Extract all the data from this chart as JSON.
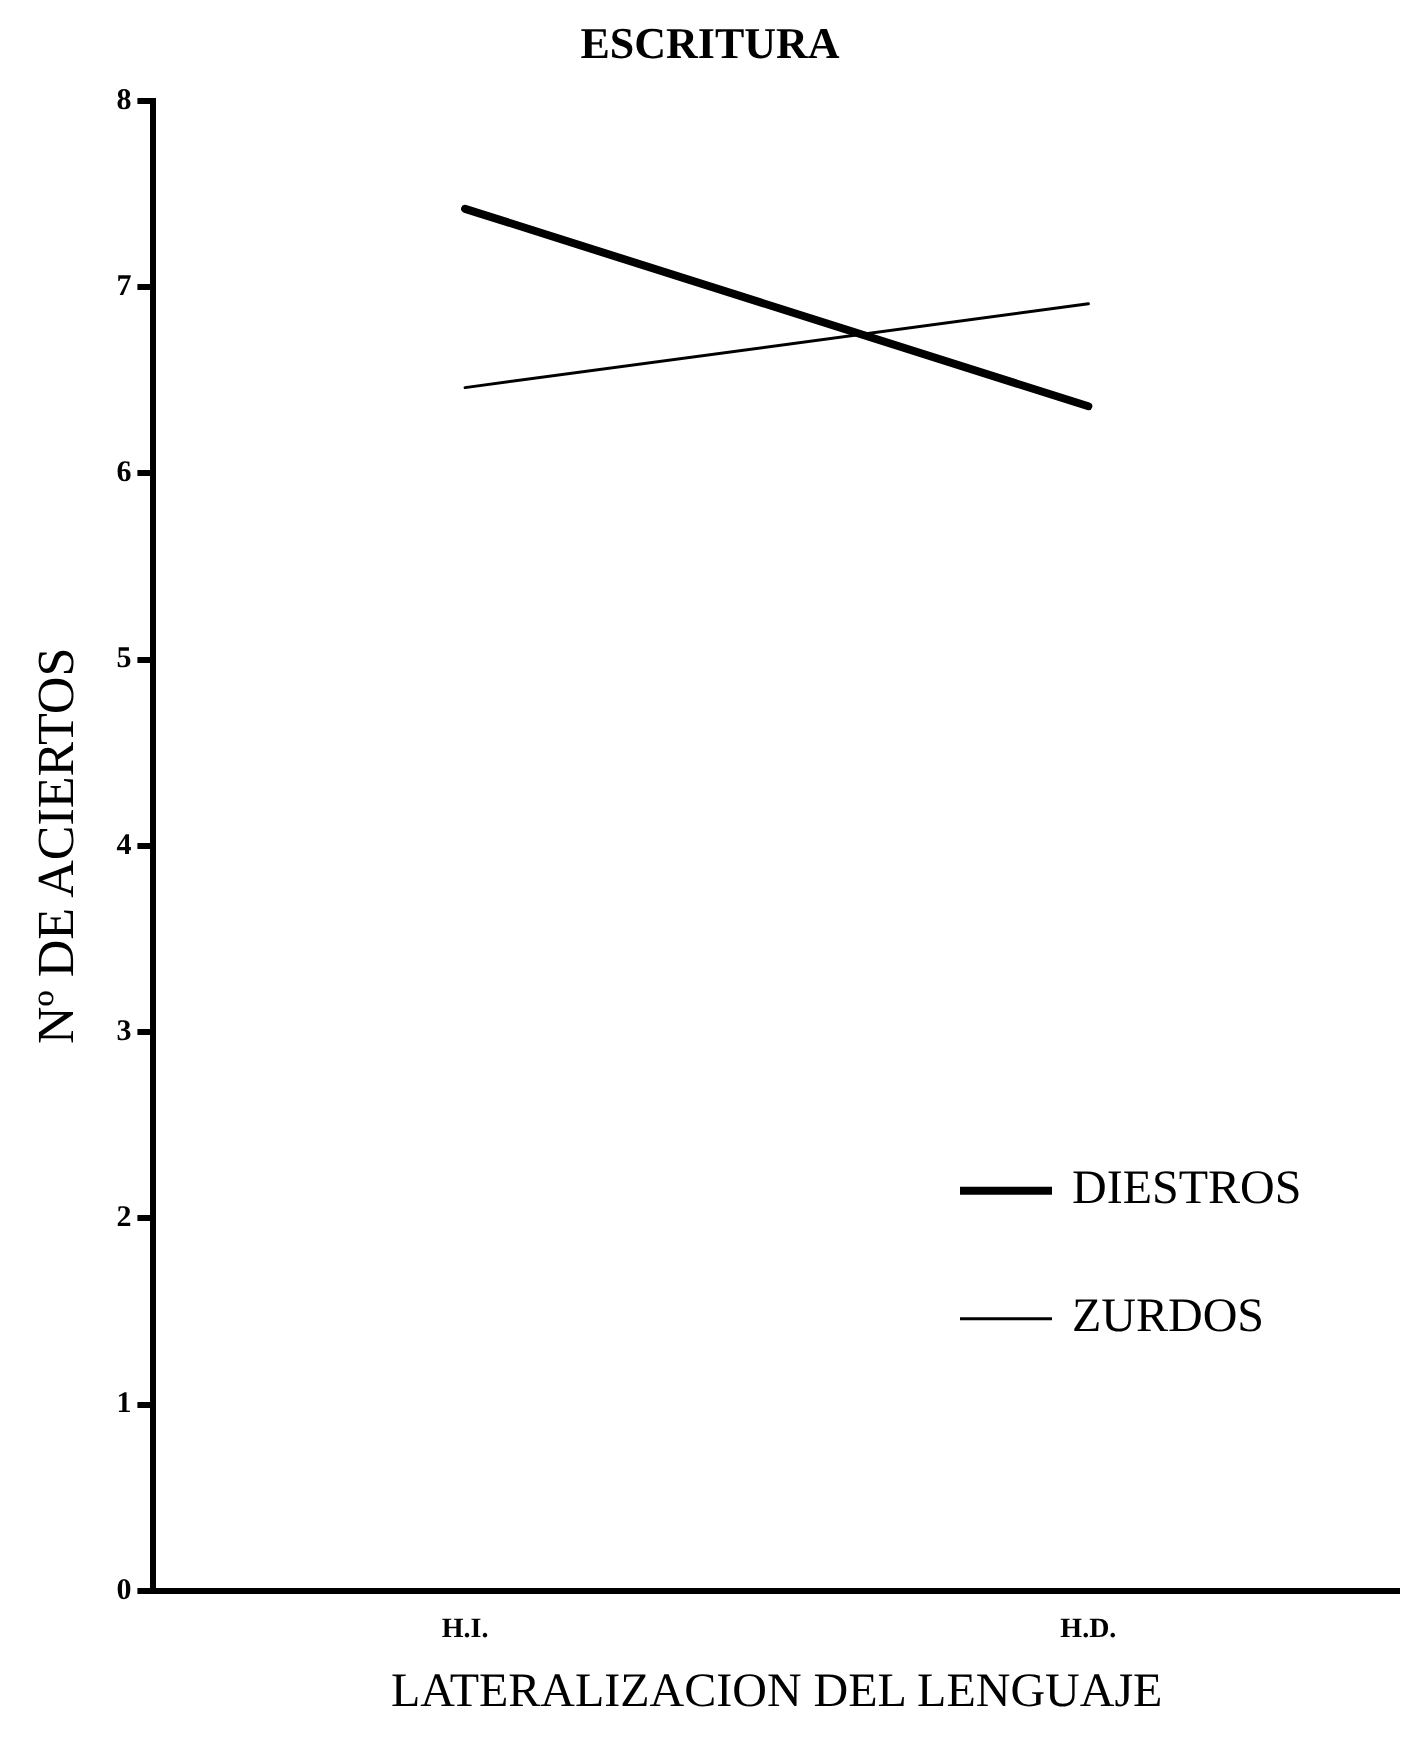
{
  "chart_data": {
    "type": "line",
    "title": "ESCRITURA",
    "xlabel": "LATERALIZACION DEL LENGUAJE",
    "ylabel": "Nº DE ACIERTOS",
    "categories": [
      "H.I.",
      "H.D."
    ],
    "series": [
      {
        "name": "DIESTROS",
        "color": "#000000",
        "values": [
          7.42,
          6.36
        ]
      },
      {
        "name": "ZURDOS",
        "color": "#000000",
        "values": [
          6.46,
          6.91
        ]
      }
    ],
    "ylim": [
      0,
      8
    ],
    "yticks": [
      0,
      1,
      2,
      3,
      4,
      5,
      6,
      7,
      8
    ],
    "grid": false,
    "legend": "bottom right",
    "marker": "none",
    "line_style": "solid"
  }
}
